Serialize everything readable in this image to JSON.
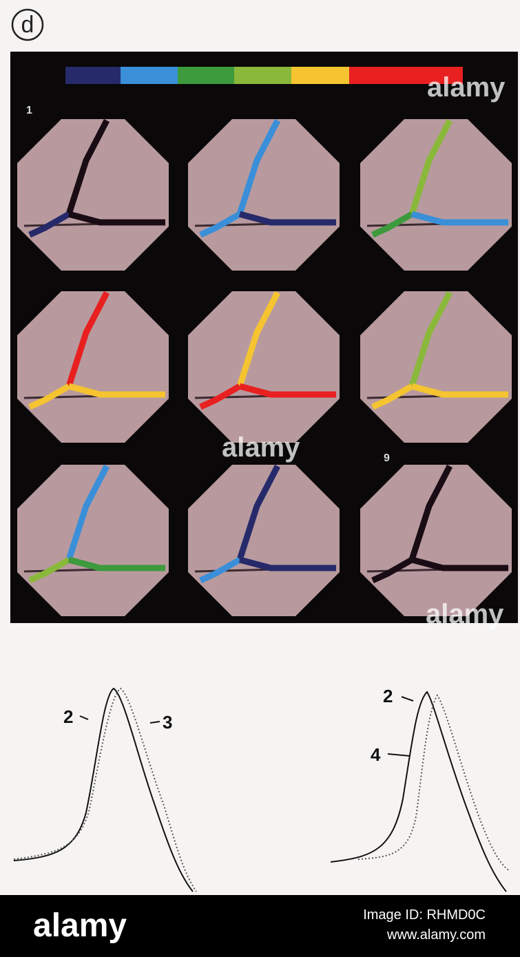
{
  "figure": {
    "label": "d",
    "panels": [
      {
        "label": "1"
      },
      {
        "label": "9"
      }
    ],
    "traces_left": {
      "labels": [
        "2",
        "3"
      ]
    },
    "traces_right": {
      "labels": [
        "2",
        "4"
      ]
    }
  },
  "watermark": "alamy",
  "footer": {
    "logo": "alamy",
    "image_id": "Image ID: RHMD0C",
    "url": "www.alamy.com"
  }
}
